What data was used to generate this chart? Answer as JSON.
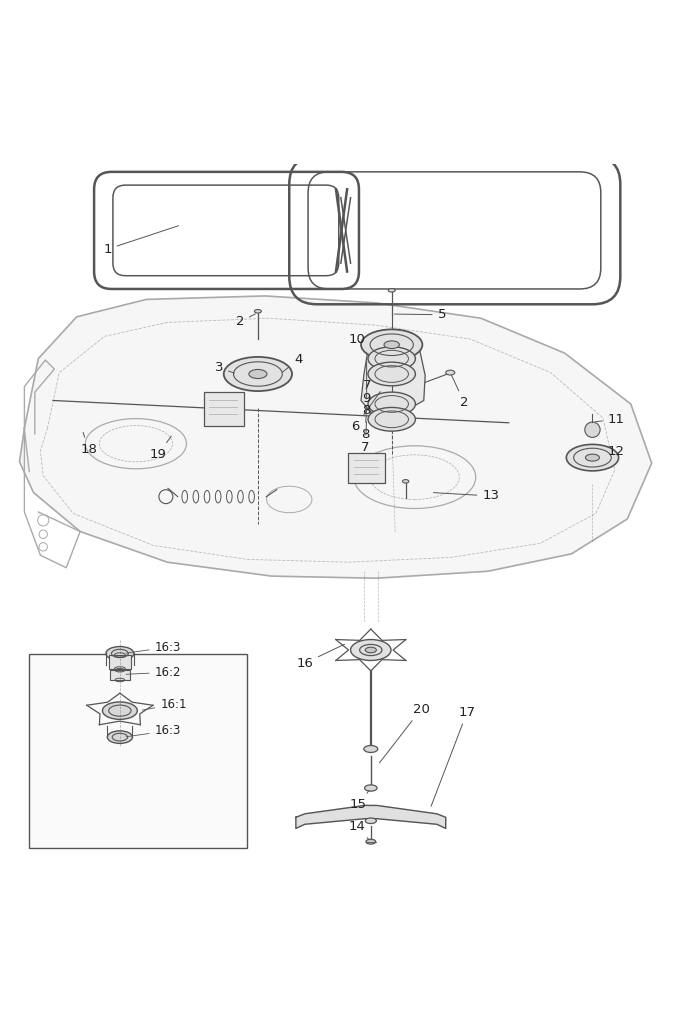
{
  "bg_color": "#ffffff",
  "line_color": "#555555",
  "light_line_color": "#aaaaaa",
  "dashed_color": "#bbbbbb"
}
